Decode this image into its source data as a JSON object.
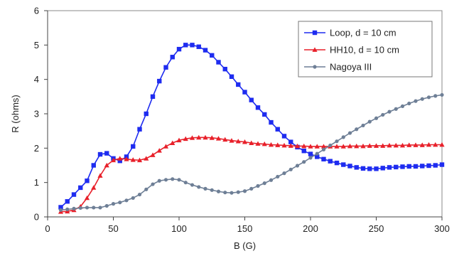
{
  "chart_data": {
    "type": "line",
    "title": "",
    "xlabel": "B (G)",
    "ylabel": "R (ohms)",
    "xlim": [
      0,
      300
    ],
    "ylim": [
      0,
      6
    ],
    "xticks": [
      0,
      50,
      100,
      150,
      200,
      250,
      300
    ],
    "yticks": [
      0,
      1,
      2,
      3,
      4,
      5,
      6
    ],
    "grid": false,
    "legend_position": "top-right",
    "series": [
      {
        "name": "Loop, d = 10 cm",
        "color": "#1e2cf0",
        "marker": "square",
        "x": [
          10,
          15,
          20,
          25,
          30,
          35,
          40,
          45,
          50,
          55,
          60,
          65,
          70,
          75,
          80,
          85,
          90,
          95,
          100,
          105,
          110,
          115,
          120,
          125,
          130,
          135,
          140,
          145,
          150,
          155,
          160,
          165,
          170,
          175,
          180,
          185,
          190,
          195,
          200,
          205,
          210,
          215,
          220,
          225,
          230,
          235,
          240,
          245,
          250,
          255,
          260,
          265,
          270,
          275,
          280,
          285,
          290,
          295,
          300
        ],
        "y": [
          0.28,
          0.45,
          0.65,
          0.85,
          1.05,
          1.5,
          1.82,
          1.85,
          1.7,
          1.63,
          1.75,
          2.05,
          2.55,
          3.0,
          3.5,
          3.95,
          4.35,
          4.65,
          4.88,
          5.0,
          5.0,
          4.95,
          4.85,
          4.7,
          4.5,
          4.3,
          4.08,
          3.85,
          3.63,
          3.4,
          3.18,
          2.98,
          2.75,
          2.55,
          2.35,
          2.18,
          2.03,
          1.92,
          1.83,
          1.75,
          1.68,
          1.62,
          1.57,
          1.52,
          1.48,
          1.44,
          1.41,
          1.4,
          1.4,
          1.42,
          1.44,
          1.45,
          1.46,
          1.47,
          1.47,
          1.48,
          1.49,
          1.5,
          1.52
        ]
      },
      {
        "name": "HH10, d = 10 cm",
        "color": "#e8202a",
        "marker": "triangle",
        "x": [
          10,
          15,
          20,
          25,
          30,
          35,
          40,
          45,
          50,
          55,
          60,
          65,
          70,
          75,
          80,
          85,
          90,
          95,
          100,
          105,
          110,
          115,
          120,
          125,
          130,
          135,
          140,
          145,
          150,
          155,
          160,
          165,
          170,
          175,
          180,
          185,
          190,
          195,
          200,
          205,
          210,
          215,
          220,
          225,
          230,
          235,
          240,
          245,
          250,
          255,
          260,
          265,
          270,
          275,
          280,
          285,
          290,
          295,
          300
        ],
        "y": [
          0.15,
          0.16,
          0.2,
          0.3,
          0.55,
          0.85,
          1.2,
          1.5,
          1.65,
          1.7,
          1.68,
          1.66,
          1.65,
          1.7,
          1.8,
          1.93,
          2.05,
          2.15,
          2.23,
          2.27,
          2.3,
          2.31,
          2.31,
          2.3,
          2.28,
          2.25,
          2.22,
          2.2,
          2.18,
          2.15,
          2.13,
          2.12,
          2.1,
          2.09,
          2.08,
          2.07,
          2.06,
          2.06,
          2.05,
          2.05,
          2.05,
          2.05,
          2.05,
          2.05,
          2.06,
          2.06,
          2.06,
          2.07,
          2.07,
          2.07,
          2.08,
          2.08,
          2.08,
          2.09,
          2.09,
          2.09,
          2.1,
          2.1,
          2.1
        ]
      },
      {
        "name": "Nagoya III",
        "color": "#6e7f96",
        "marker": "circle",
        "x": [
          10,
          15,
          20,
          25,
          30,
          35,
          40,
          45,
          50,
          55,
          60,
          65,
          70,
          75,
          80,
          85,
          90,
          95,
          100,
          105,
          110,
          115,
          120,
          125,
          130,
          135,
          140,
          145,
          150,
          155,
          160,
          165,
          170,
          175,
          180,
          185,
          190,
          195,
          200,
          205,
          210,
          215,
          220,
          225,
          230,
          235,
          240,
          245,
          250,
          255,
          260,
          265,
          270,
          275,
          280,
          285,
          290,
          295,
          300
        ],
        "y": [
          0.2,
          0.22,
          0.24,
          0.26,
          0.27,
          0.27,
          0.27,
          0.32,
          0.38,
          0.42,
          0.48,
          0.55,
          0.65,
          0.8,
          0.95,
          1.05,
          1.08,
          1.1,
          1.08,
          1.0,
          0.93,
          0.87,
          0.82,
          0.78,
          0.74,
          0.71,
          0.7,
          0.72,
          0.75,
          0.82,
          0.9,
          0.98,
          1.07,
          1.17,
          1.27,
          1.38,
          1.49,
          1.6,
          1.72,
          1.84,
          1.96,
          2.08,
          2.2,
          2.32,
          2.44,
          2.55,
          2.66,
          2.77,
          2.87,
          2.97,
          3.06,
          3.14,
          3.22,
          3.3,
          3.37,
          3.43,
          3.48,
          3.52,
          3.55
        ]
      }
    ]
  }
}
